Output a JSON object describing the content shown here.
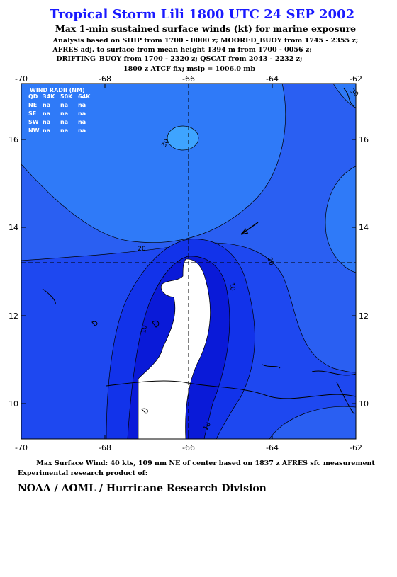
{
  "title": "Tropical Storm Lili 1800 UTC 24 SEP 2002",
  "subtitle": "Max 1-min sustained surface winds (kt) for marine exposure",
  "analysis_lines": [
    "Analysis based on  SHIP from 1700 - 0000 z;  MOORED_BUOY from 1745 - 2355 z;",
    "AFRES adj. to surface from mean height 1394 m from 1700 - 0056 z;",
    "DRIFTING_BUOY from 1700 - 2320 z;  QSCAT from 2043 - 2232 z;",
    "1800 z ATCF fix; mslp = 1006.0 mb"
  ],
  "map": {
    "top_labels": [
      "-70",
      "-68",
      "-66",
      "-64",
      "-62"
    ],
    "bottom_labels": [
      "-70",
      "-68",
      "-66",
      "-64",
      "-62"
    ],
    "left_labels": [
      "16",
      "14",
      "12",
      "10"
    ],
    "right_labels": [
      "16",
      "14",
      "12",
      "10"
    ],
    "contour_labels": [
      "30",
      "30",
      "20",
      "20",
      "10",
      "10",
      "10"
    ]
  },
  "wind_radii": {
    "header": "WIND RADII (NM)",
    "columns": [
      "QD",
      "34K",
      "50K",
      "64K"
    ],
    "rows": [
      [
        "NE",
        "na",
        "na",
        "na"
      ],
      [
        "SE",
        "na",
        "na",
        "na"
      ],
      [
        "SW",
        "na",
        "na",
        "na"
      ],
      [
        "NW",
        "na",
        "na",
        "na"
      ]
    ]
  },
  "footer": {
    "max_wind": "Max Surface Wind: 40 kts, 109 nm NE of center based on 1837 z AFRES sfc measurement",
    "product": "Experimental research product of:",
    "org": "NOAA / AOML / Hurricane Research Division"
  }
}
